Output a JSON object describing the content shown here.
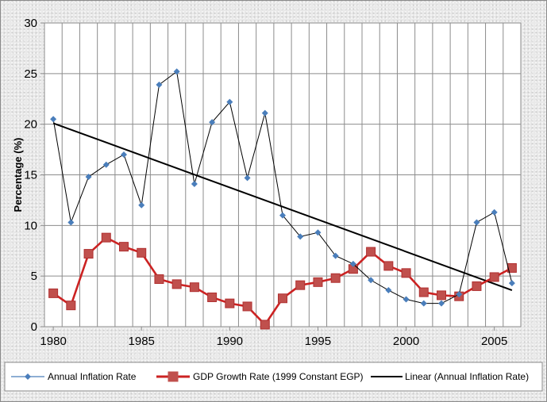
{
  "chart_data": {
    "type": "line",
    "title": "",
    "xlabel": "",
    "ylabel": "Percentage (%)",
    "xlim": [
      1979.5,
      2006.5
    ],
    "ylim": [
      0,
      30
    ],
    "x_ticks": [
      1980,
      1985,
      1990,
      1995,
      2000,
      2005
    ],
    "y_ticks": [
      0,
      5,
      10,
      15,
      20,
      25,
      30
    ],
    "grid": true,
    "legend_position": "bottom",
    "x": [
      1980,
      1981,
      1982,
      1983,
      1984,
      1985,
      1986,
      1987,
      1988,
      1989,
      1990,
      1991,
      1992,
      1993,
      1994,
      1995,
      1996,
      1997,
      1998,
      1999,
      2000,
      2001,
      2002,
      2003,
      2004,
      2005,
      2006
    ],
    "series": [
      {
        "name": "Annual Inflation Rate",
        "color": "#4a7ebb",
        "marker": "diamond",
        "values": [
          20.5,
          10.3,
          14.8,
          16.0,
          17.0,
          12.0,
          23.9,
          25.2,
          14.1,
          20.2,
          22.2,
          14.7,
          21.1,
          11.0,
          8.9,
          9.3,
          7.0,
          6.2,
          4.6,
          3.6,
          2.7,
          2.3,
          2.3,
          3.2,
          10.3,
          11.3,
          4.3
        ]
      },
      {
        "name": "GDP Growth Rate (1999 Constant  EGP)",
        "color": "#cc2222",
        "marker": "square",
        "values": [
          3.3,
          2.1,
          7.2,
          8.8,
          7.9,
          7.3,
          4.7,
          4.2,
          3.9,
          2.9,
          2.3,
          2.0,
          0.2,
          2.8,
          4.1,
          4.4,
          4.8,
          5.7,
          7.4,
          6.0,
          5.3,
          3.4,
          3.1,
          3.0,
          4.0,
          4.9,
          5.8
        ]
      },
      {
        "name": "Linear (Annual Inflation Rate)",
        "color": "#000000",
        "marker": "none",
        "trend": true,
        "x": [
          1980,
          2006
        ],
        "values": [
          20.1,
          3.6
        ]
      }
    ]
  }
}
